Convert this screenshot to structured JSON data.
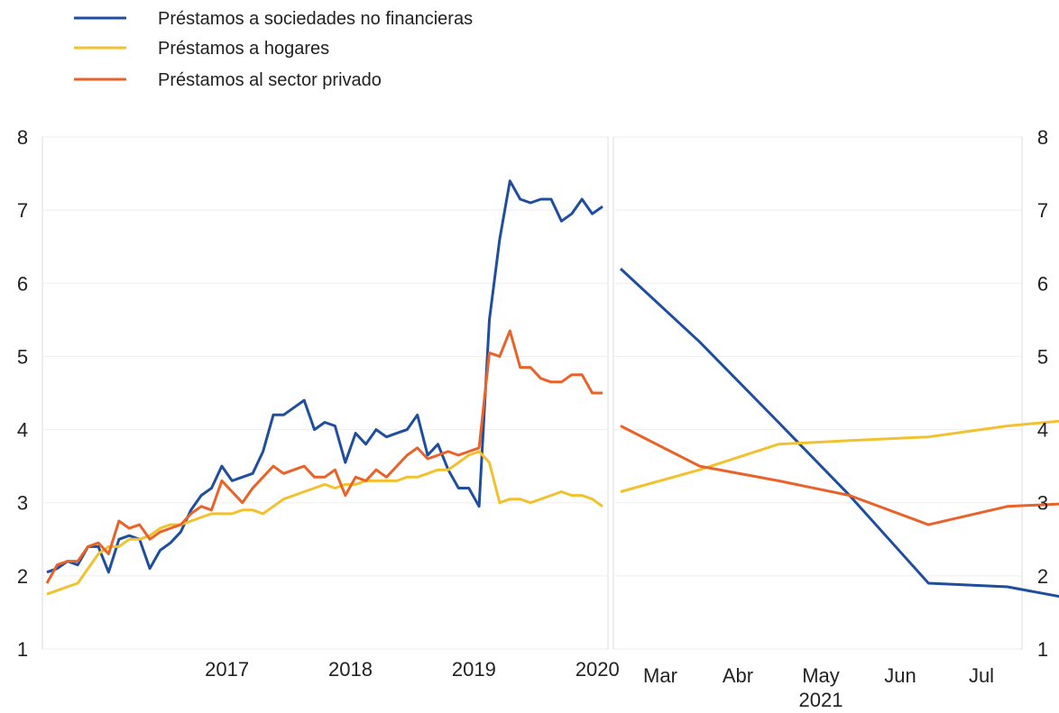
{
  "chart_data": {
    "type": "line",
    "legend_position": "top-left",
    "grid": true,
    "ylim": [
      1,
      8
    ],
    "yticks": [
      "1",
      "2",
      "3",
      "4",
      "5",
      "6",
      "7",
      "8"
    ],
    "series_meta": [
      {
        "name": "Préstamos a sociedades no financieras",
        "color": "#1f4e9e"
      },
      {
        "name": "Préstamos a hogares",
        "color": "#f2c12e"
      },
      {
        "name": "Préstamos al sector privado",
        "color": "#e8622a"
      }
    ],
    "panels": [
      {
        "x_labels": [
          "2017",
          "2018",
          "2019",
          "2020"
        ],
        "x_label_positions": [
          1,
          13,
          25,
          37
        ],
        "x_start": -11,
        "x_end": 43,
        "series": [
          {
            "name": "Préstamos a sociedades no financieras",
            "x": [
              -11,
              -10,
              -9,
              -8,
              -7,
              -6,
              -5,
              -4,
              -3,
              -2,
              -1,
              0,
              1,
              2,
              3,
              4,
              5,
              6,
              7,
              8,
              9,
              10,
              11,
              12,
              13,
              14,
              15,
              16,
              17,
              18,
              19,
              20,
              21,
              22,
              23,
              24,
              25,
              26,
              27,
              28,
              29,
              30,
              31,
              32,
              33,
              34,
              35,
              36,
              37,
              38,
              39,
              40,
              41,
              42,
              43
            ],
            "values": [
              2.05,
              2.1,
              2.2,
              2.15,
              2.4,
              2.4,
              2.05,
              2.5,
              2.55,
              2.5,
              2.1,
              2.35,
              2.45,
              2.6,
              2.9,
              3.1,
              3.2,
              3.5,
              3.3,
              3.35,
              3.4,
              3.7,
              4.2,
              4.2,
              4.3,
              4.4,
              4.0,
              4.1,
              4.05,
              3.55,
              3.95,
              3.8,
              4.0,
              3.9,
              3.95,
              4.0,
              4.2,
              3.65,
              3.8,
              3.45,
              3.2,
              3.2,
              2.95,
              5.5,
              6.6,
              7.4,
              7.15,
              7.1,
              7.15,
              7.15,
              6.85,
              6.95,
              7.15,
              6.95,
              7.05
            ]
          },
          {
            "name": "Préstamos a hogares",
            "x": [
              -11,
              -10,
              -9,
              -8,
              -7,
              -6,
              -5,
              -4,
              -3,
              -2,
              -1,
              0,
              1,
              2,
              3,
              4,
              5,
              6,
              7,
              8,
              9,
              10,
              11,
              12,
              13,
              14,
              15,
              16,
              17,
              18,
              19,
              20,
              21,
              22,
              23,
              24,
              25,
              26,
              27,
              28,
              29,
              30,
              31,
              32,
              33,
              34,
              35,
              36,
              37,
              38,
              39,
              40,
              41,
              42,
              43
            ],
            "values": [
              1.75,
              1.8,
              1.85,
              1.9,
              2.1,
              2.3,
              2.4,
              2.4,
              2.5,
              2.5,
              2.55,
              2.65,
              2.7,
              2.7,
              2.75,
              2.8,
              2.85,
              2.85,
              2.85,
              2.9,
              2.9,
              2.85,
              2.95,
              3.05,
              3.1,
              3.15,
              3.2,
              3.25,
              3.2,
              3.25,
              3.25,
              3.3,
              3.3,
              3.3,
              3.3,
              3.35,
              3.35,
              3.4,
              3.45,
              3.45,
              3.55,
              3.65,
              3.7,
              3.55,
              3.0,
              3.05,
              3.05,
              3.0,
              3.05,
              3.1,
              3.15,
              3.1,
              3.1,
              3.05,
              2.95
            ]
          },
          {
            "name": "Préstamos al sector privado",
            "x": [
              -11,
              -10,
              -9,
              -8,
              -7,
              -6,
              -5,
              -4,
              -3,
              -2,
              -1,
              0,
              1,
              2,
              3,
              4,
              5,
              6,
              7,
              8,
              9,
              10,
              11,
              12,
              13,
              14,
              15,
              16,
              17,
              18,
              19,
              20,
              21,
              22,
              23,
              24,
              25,
              26,
              27,
              28,
              29,
              30,
              31,
              32,
              33,
              34,
              35,
              36,
              37,
              38,
              39,
              40,
              41,
              42,
              43
            ],
            "values": [
              1.9,
              2.15,
              2.2,
              2.2,
              2.4,
              2.45,
              2.3,
              2.75,
              2.65,
              2.7,
              2.5,
              2.6,
              2.65,
              2.7,
              2.85,
              2.95,
              2.9,
              3.3,
              3.15,
              3.0,
              3.2,
              3.35,
              3.5,
              3.4,
              3.45,
              3.5,
              3.35,
              3.35,
              3.45,
              3.1,
              3.35,
              3.3,
              3.45,
              3.35,
              3.5,
              3.65,
              3.75,
              3.6,
              3.65,
              3.7,
              3.65,
              3.7,
              3.75,
              5.05,
              5.0,
              5.35,
              4.85,
              4.85,
              4.7,
              4.65,
              4.65,
              4.75,
              4.75,
              4.5,
              4.5
            ]
          }
        ]
      },
      {
        "x_labels": [
          "Mar",
          "Abr",
          "May",
          "Jun",
          "Jul"
        ],
        "x_sublabel": "2021",
        "x_sublabel_under": "May",
        "series": [
          {
            "name": "Préstamos a sociedades no financieras",
            "values": [
              6.2,
              5.2,
              4.1,
              3.1,
              1.9,
              1.85,
              1.65
            ]
          },
          {
            "name": "Préstamos a hogares",
            "values": [
              3.15,
              3.45,
              3.8,
              3.85,
              3.9,
              4.05,
              4.15
            ]
          },
          {
            "name": "Préstamos al sector privado",
            "values": [
              4.05,
              3.5,
              3.3,
              3.1,
              2.7,
              2.95,
              3.0
            ]
          }
        ],
        "x": [
          0,
          1,
          2,
          2.9,
          3.9,
          4.9,
          5.9
        ],
        "x_label_positions": [
          1,
          2,
          3,
          4,
          5
        ]
      }
    ]
  }
}
